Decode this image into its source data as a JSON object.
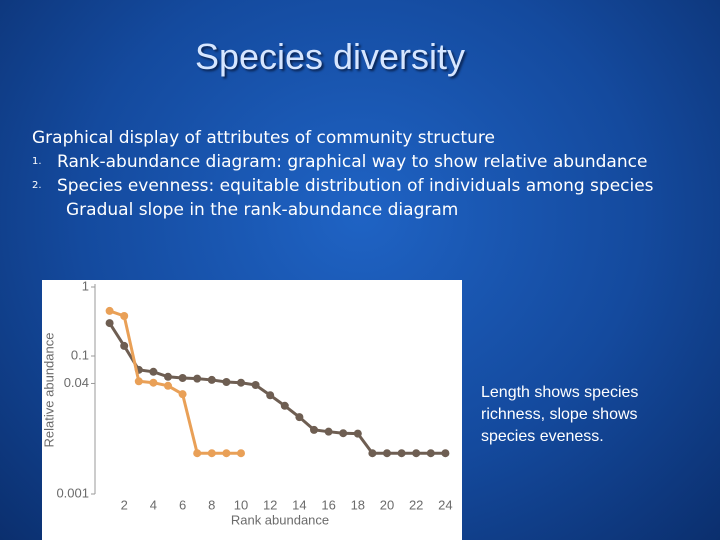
{
  "slide": {
    "title": "Species diversity",
    "intro": "Graphical display of attributes of community structure",
    "items": [
      {
        "marker": "1.",
        "text": "Rank-abundance diagram: graphical way to show relative abundance"
      },
      {
        "marker": "2.",
        "text": "Species evenness: equitable distribution of individuals among species"
      }
    ],
    "subline": "Gradual slope in the rank-abundance diagram",
    "note": "Length shows species richness, slope shows species eveness."
  },
  "chart_data": {
    "type": "line",
    "x_label": "Rank abundance",
    "y_label": "Relative abundance",
    "x": [
      1,
      2,
      3,
      4,
      5,
      6,
      7,
      8,
      9,
      10,
      11,
      12,
      13,
      14,
      15,
      16,
      17,
      18,
      19,
      20,
      21,
      22,
      23,
      24
    ],
    "series": [
      {
        "color": "#6e5e52",
        "values": [
          0.3,
          0.14,
          0.063,
          0.059,
          0.05,
          0.048,
          0.047,
          0.045,
          0.042,
          0.041,
          0.038,
          0.027,
          0.019,
          0.013,
          0.0085,
          0.008,
          0.0076,
          0.0075,
          0.0039,
          0.0039,
          0.0039,
          0.0039,
          0.0039,
          0.0039
        ]
      },
      {
        "color": "#e9a057",
        "values": [
          0.45,
          0.38,
          0.043,
          0.041,
          0.037,
          0.028,
          0.0039,
          0.0039,
          0.0039,
          0.0039,
          null,
          null,
          null,
          null,
          null,
          null,
          null,
          null,
          null,
          null,
          null,
          null,
          null,
          null
        ]
      }
    ],
    "xlim": [
      0,
      25
    ],
    "xticks": [
      2,
      4,
      6,
      8,
      10,
      12,
      14,
      16,
      18,
      20,
      22,
      24
    ],
    "ylim": [
      0.001,
      1
    ],
    "yticks": [
      0.001,
      0.04,
      0.1,
      1
    ],
    "log_y": true
  }
}
